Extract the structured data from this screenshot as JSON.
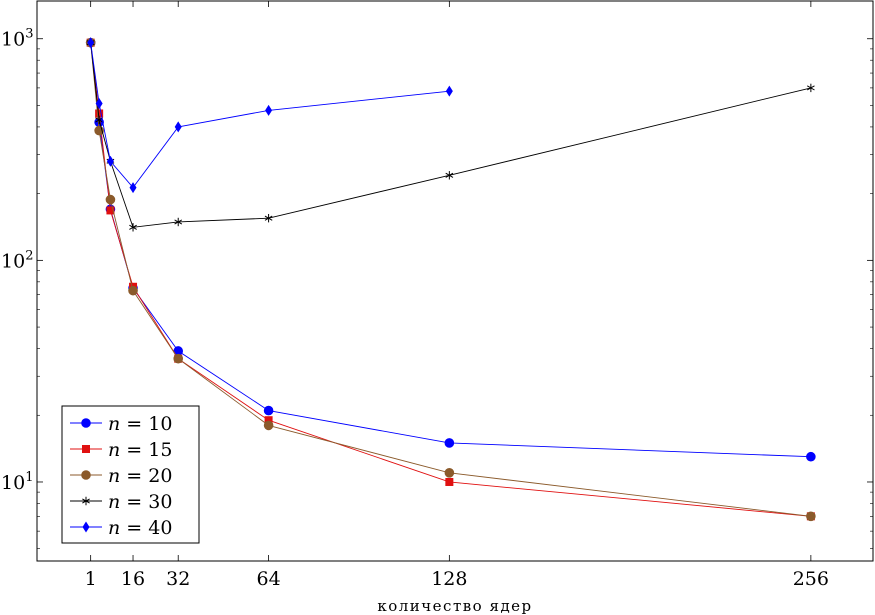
{
  "chart_data": {
    "type": "line",
    "title": "",
    "xlabel": "количество ядер",
    "ylabel": "",
    "xscale": "linear",
    "yscale": "log",
    "xlim": [
      -18,
      278
    ],
    "ylim": [
      4.4,
      1480
    ],
    "grid": false,
    "legend_position": "bottom-left",
    "x_ticks": [
      1,
      16,
      32,
      64,
      128,
      256
    ],
    "x_tick_labels": [
      "1",
      "16",
      "32",
      "64",
      "128",
      "256"
    ],
    "y_ticks": [
      10,
      100,
      1000
    ],
    "y_tick_labels": [
      {
        "base": "10",
        "exp": "1"
      },
      {
        "base": "10",
        "exp": "2"
      },
      {
        "base": "10",
        "exp": "3"
      }
    ],
    "series": [
      {
        "name": "n = 10",
        "var": "n",
        "eq": "= 10",
        "color": "#0000ff",
        "marker": "circle",
        "x": [
          1,
          4,
          8,
          16,
          32,
          64,
          128,
          256
        ],
        "y": [
          960,
          420,
          170,
          75,
          39,
          21,
          15,
          13
        ]
      },
      {
        "name": "n = 15",
        "var": "n",
        "eq": "= 15",
        "color": "#e01010",
        "marker": "square",
        "x": [
          1,
          4,
          8,
          16,
          32,
          64,
          128,
          256
        ],
        "y": [
          960,
          460,
          168,
          76,
          36,
          19,
          10,
          7
        ]
      },
      {
        "name": "n = 20",
        "var": "n",
        "eq": "= 20",
        "color": "#8b5a2b",
        "marker": "circle",
        "x": [
          1,
          4,
          8,
          16,
          32,
          64,
          128,
          256
        ],
        "y": [
          960,
          385,
          188,
          73,
          36,
          18,
          11,
          7
        ]
      },
      {
        "name": "n = 30",
        "var": "n",
        "eq": "= 30",
        "color": "#000000",
        "marker": "star",
        "x": [
          1,
          4,
          8,
          16,
          32,
          64,
          128,
          256
        ],
        "y": [
          960,
          430,
          280,
          141,
          149,
          155,
          242,
          600
        ]
      },
      {
        "name": "n = 40",
        "var": "n",
        "eq": "= 40",
        "color": "#0000ff",
        "marker": "diamond",
        "x": [
          1,
          4,
          8,
          16,
          32,
          64,
          128
        ],
        "y": [
          960,
          510,
          280,
          213,
          400,
          475,
          580
        ]
      }
    ]
  }
}
